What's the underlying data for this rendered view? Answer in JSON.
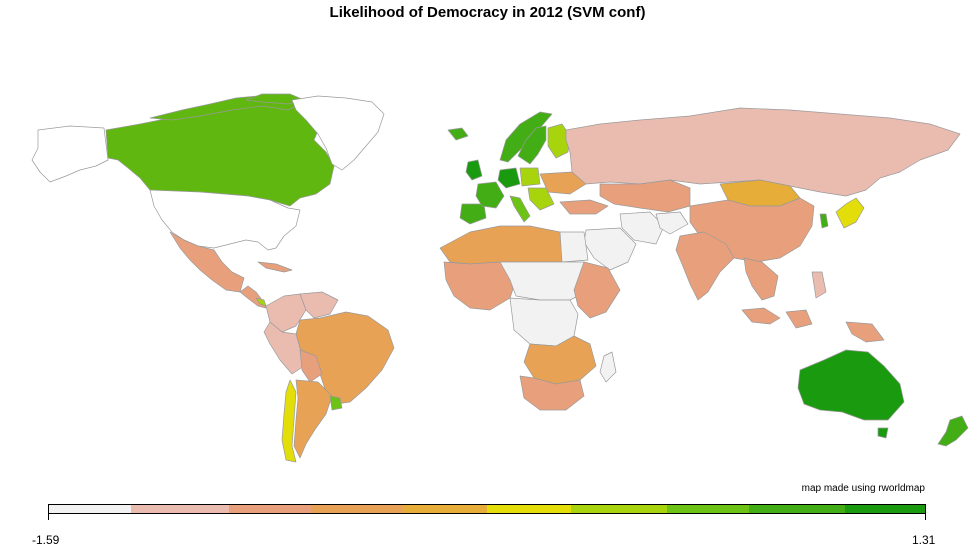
{
  "title": "Likelihood of Democracy in 2012 (SVM conf)",
  "credit": "map made using rworldmap",
  "legend": {
    "min_label": "-1.59",
    "max_label": "1.31",
    "bins": [
      "#f2f2f2",
      "#eabcb0",
      "#e8a07c",
      "#e8a256",
      "#e6ad38",
      "#e3dd0a",
      "#a8d40e",
      "#6cc315",
      "#43ad15",
      "#1a9a0e"
    ]
  },
  "colors": {
    "no_data": "#ffffff",
    "border": "#9a9a9a",
    "ocean": "#ffffff"
  }
}
